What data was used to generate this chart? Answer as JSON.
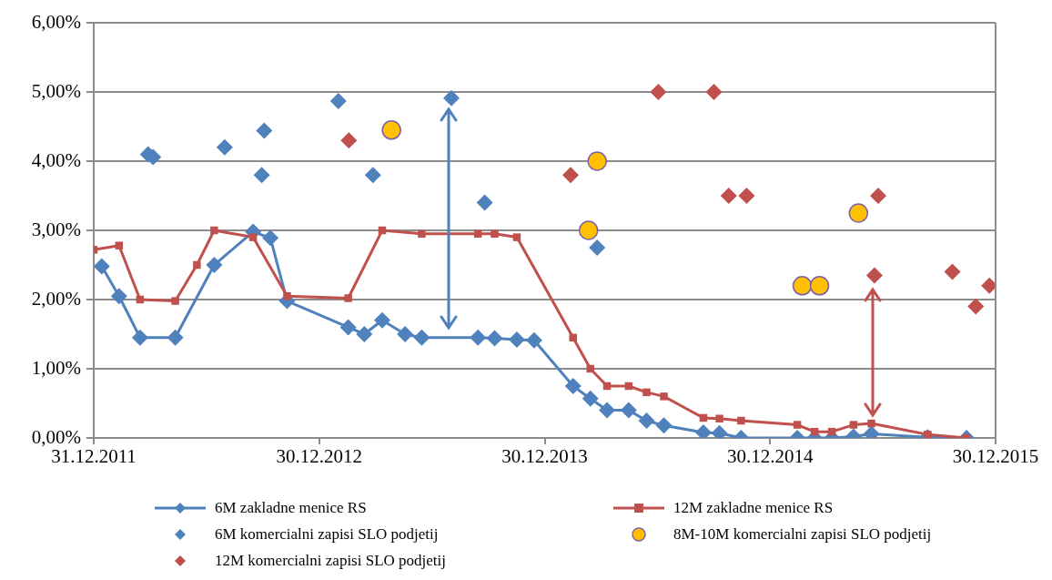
{
  "chart_data": {
    "type": "line",
    "xlim": [
      "2011-12-31",
      "2015-12-30"
    ],
    "xticks": [
      {
        "value": "2011-12-31",
        "label": "31.12.2011"
      },
      {
        "value": "2012-12-30",
        "label": "30.12.2012"
      },
      {
        "value": "2013-12-30",
        "label": "30.12.2013"
      },
      {
        "value": "2014-12-30",
        "label": "30.12.2014"
      },
      {
        "value": "2015-12-30",
        "label": "30.12.2015"
      }
    ],
    "ylim": [
      0,
      6
    ],
    "yticks": [
      {
        "value": 0,
        "label": "0,00%"
      },
      {
        "value": 1,
        "label": "1,00%"
      },
      {
        "value": 2,
        "label": "2,00%"
      },
      {
        "value": 3,
        "label": "3,00%"
      },
      {
        "value": 4,
        "label": "4,00%"
      },
      {
        "value": 5,
        "label": "5,00%"
      },
      {
        "value": 6,
        "label": "6,00%"
      }
    ],
    "grid": "y",
    "legend": "bottom",
    "line_style": "solid",
    "series": [
      {
        "name": "6M zakladne menice RS",
        "type": "line",
        "marker": "diamond",
        "color": "#4f81bd",
        "x": [
          "2012-01-13",
          "2012-02-10",
          "2012-03-15",
          "2012-05-11",
          "2012-07-13",
          "2012-09-14",
          "2012-10-12",
          "2012-11-08",
          "2013-02-15",
          "2013-03-13",
          "2013-04-11",
          "2013-05-18",
          "2013-06-14",
          "2013-09-13",
          "2013-10-10",
          "2013-11-15",
          "2013-12-13",
          "2014-02-14",
          "2014-03-14",
          "2014-04-10",
          "2014-05-15",
          "2014-06-13",
          "2014-07-11",
          "2014-09-13",
          "2014-10-09",
          "2014-11-13",
          "2015-02-12",
          "2015-03-12",
          "2015-04-09",
          "2015-05-14",
          "2015-06-12",
          "2015-09-11",
          "2015-11-13"
        ],
        "values": [
          2.48,
          2.05,
          1.45,
          1.45,
          2.5,
          2.98,
          2.89,
          1.98,
          1.6,
          1.5,
          1.7,
          1.5,
          1.45,
          1.45,
          1.44,
          1.42,
          1.41,
          0.75,
          0.57,
          0.4,
          0.4,
          0.25,
          0.18,
          0.08,
          0.07,
          0,
          0,
          0,
          0,
          0.02,
          0.06,
          0.01,
          0
        ]
      },
      {
        "name": "12M zakladne menice RS",
        "type": "line",
        "marker": "square",
        "color": "#c0504d",
        "x": [
          "2011-12-31",
          "2012-02-10",
          "2012-03-15",
          "2012-05-11",
          "2012-06-15",
          "2012-07-13",
          "2012-09-14",
          "2012-11-08",
          "2013-02-15",
          "2013-04-11",
          "2013-06-14",
          "2013-09-13",
          "2013-10-10",
          "2013-11-15",
          "2014-02-14",
          "2014-03-14",
          "2014-04-10",
          "2014-05-15",
          "2014-06-13",
          "2014-07-11",
          "2014-09-13",
          "2014-10-09",
          "2014-11-13",
          "2015-02-12",
          "2015-03-12",
          "2015-04-09",
          "2015-05-14",
          "2015-06-12",
          "2015-09-11",
          "2015-11-13"
        ],
        "values": [
          2.72,
          2.78,
          2.0,
          1.98,
          2.5,
          3.0,
          2.9,
          2.05,
          2.02,
          3.0,
          2.95,
          2.95,
          2.95,
          2.9,
          1.45,
          1.0,
          0.75,
          0.75,
          0.66,
          0.6,
          0.29,
          0.28,
          0.25,
          0.19,
          0.09,
          0.09,
          0.19,
          0.21,
          0.05,
          0
        ]
      },
      {
        "name": "6M komercialni zapisi SLO podjetij",
        "type": "scatter",
        "marker": "diamond",
        "color": "#4f81bd",
        "x": [
          "2012-03-28",
          "2012-04-05",
          "2012-07-30",
          "2012-10-02",
          "2012-09-28",
          "2013-01-30",
          "2013-03-27",
          "2013-08-01",
          "2013-09-24",
          "2014-03-25"
        ],
        "values": [
          4.1,
          4.06,
          4.2,
          4.44,
          3.8,
          4.87,
          3.8,
          4.91,
          3.4,
          2.75
        ]
      },
      {
        "name": "8M-10M komercialni zapisi SLO podjetij",
        "type": "scatter",
        "marker": "circle",
        "color": "#ffc000",
        "x": [
          "2013-04-26",
          "2014-03-25",
          "2014-03-11",
          "2015-05-22",
          "2015-02-20",
          "2015-03-20"
        ],
        "values": [
          4.45,
          4.0,
          3.0,
          3.25,
          2.2,
          2.2
        ]
      },
      {
        "name": "12M komercialni zapisi SLO podjetij",
        "type": "scatter",
        "marker": "diamond",
        "color": "#c0504d",
        "x": [
          "2013-02-16",
          "2014-02-10",
          "2014-07-02",
          "2014-09-30",
          "2014-10-24",
          "2014-11-22",
          "2015-06-23",
          "2015-06-17",
          "2015-10-21",
          "2015-11-28",
          "2015-12-20"
        ],
        "values": [
          4.3,
          3.8,
          5.0,
          5.0,
          3.5,
          3.5,
          3.5,
          2.35,
          2.4,
          1.9,
          2.2
        ]
      }
    ]
  }
}
